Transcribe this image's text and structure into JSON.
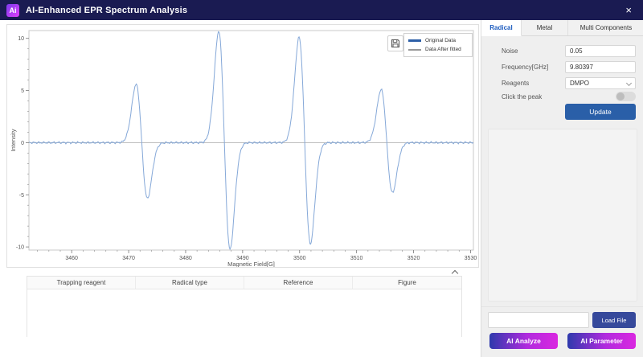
{
  "titlebar": {
    "logo_text": "Ai",
    "title": "AI-Enhanced EPR Spectrum Analysis",
    "close_glyph": "×"
  },
  "icons": {
    "logo": "ai-badge",
    "close": "x-mark",
    "save": "floppy-disk",
    "collapse": "chevron-up",
    "reagents_dropdown": "chevron-down"
  },
  "chart_data": {
    "type": "line",
    "title": "",
    "xlabel": "Magnetic Field[G]",
    "ylabel": "Intensity",
    "xlim": [
      3452.5,
      3530.5
    ],
    "ylim": [
      -10.3,
      10.75
    ],
    "x_major_ticks": [
      3460,
      3470,
      3480,
      3490,
      3500,
      3510,
      3520,
      3530
    ],
    "x_minor_step": 2,
    "y_major_ticks": [
      -10,
      -5,
      0,
      5,
      10
    ],
    "y_minor_step": 1,
    "grid": false,
    "legend_position": "upper right",
    "legend": [
      {
        "label": "Original Data",
        "swatch_color": "#2d5fa7"
      },
      {
        "label": "Data After fitted",
        "swatch_color": "#999999"
      }
    ],
    "series": [
      {
        "name": "Original Data",
        "shape": "derivative_peaks",
        "color": "#85a8d8",
        "noise_amplitude": 0.12,
        "peaks": [
          {
            "center": 3472.3,
            "amp_pos": 5.6,
            "amp_neg": 5.35,
            "sigma": 1.0
          },
          {
            "center": 3486.8,
            "amp_pos": 10.7,
            "amp_neg": 10.25,
            "sigma": 1.0
          },
          {
            "center": 3500.9,
            "amp_pos": 10.1,
            "amp_neg": 9.7,
            "sigma": 1.0
          },
          {
            "center": 3515.3,
            "amp_pos": 5.1,
            "amp_neg": 4.8,
            "sigma": 1.0
          }
        ]
      },
      {
        "name": "Data After fitted",
        "shape": "flat",
        "value": 0,
        "color": "#b5b5b5"
      }
    ]
  },
  "table": {
    "headers": [
      "Trapping reagent",
      "Radical type",
      "Reference",
      "Figure"
    ],
    "rows": []
  },
  "panel": {
    "tabs": [
      {
        "label": "Radical",
        "active": true
      },
      {
        "label": "Metal",
        "active": false
      },
      {
        "label": "Multi Components",
        "active": false
      }
    ],
    "fields": {
      "noise_label": "Noise",
      "noise_value": "0.05",
      "frequency_label": "Frequency[GHz]",
      "frequency_value": "9.80397",
      "reagents_label": "Reagents",
      "reagents_value": "DMPO",
      "click_peak_label": "Click the peak",
      "click_peak_enabled": false
    },
    "update_label": "Update",
    "file_input_value": "",
    "load_file_label": "Load File",
    "ai_analyze_label": "AI Analyze",
    "ai_parameter_label": "AI Parameter"
  },
  "colors": {
    "titlebar_bg": "#1a1b52",
    "panel_bg": "#efefef",
    "accent_blue": "#2a5fa8",
    "active_tab_text": "#1d5cbf",
    "load_btn": "#36499b",
    "ai_gradient_start": "#2e3aac",
    "ai_gradient_end": "#da27e0",
    "curve": "#85a8d8"
  }
}
